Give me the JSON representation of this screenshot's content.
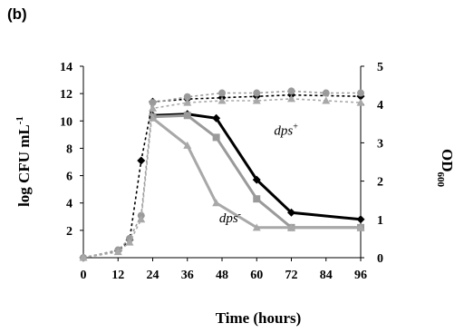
{
  "panel_label": "(b)",
  "chart_data": {
    "type": "line",
    "xlabel": "Time (hours)",
    "ylabel_left": "log CFU mL",
    "ylabel_left_sup": "-1",
    "ylabel_right": "OD",
    "ylabel_right_sub": "600",
    "xlim": [
      0,
      96
    ],
    "ylim_left": [
      0,
      14
    ],
    "ylim_right": [
      0,
      5
    ],
    "x_ticks": [
      "0",
      "12",
      "24",
      "36",
      "48",
      "60",
      "72",
      "84",
      "96"
    ],
    "y_left_ticks": [
      "2",
      "4",
      "6",
      "8",
      "10",
      "12",
      "14"
    ],
    "y_right_ticks": [
      "0",
      "1",
      "2",
      "3",
      "4",
      "5"
    ],
    "annotations": [
      {
        "text": "dps",
        "sup": "+",
        "x": 66,
        "y": 9.0,
        "axis": "left"
      },
      {
        "text": "dps",
        "sup": "-",
        "x": 47,
        "y": 2.6,
        "axis": "left"
      }
    ],
    "series": [
      {
        "axis": "left",
        "style": "solid",
        "color": "#000000",
        "marker": "diamond",
        "x": [
          24,
          36,
          46,
          60,
          72,
          96
        ],
        "y": [
          10.4,
          10.5,
          10.2,
          5.7,
          3.3,
          2.8
        ]
      },
      {
        "axis": "left",
        "style": "solid",
        "color": "#9a9a9a",
        "marker": "square",
        "x": [
          24,
          36,
          46,
          60,
          72,
          96
        ],
        "y": [
          10.3,
          10.4,
          8.8,
          4.3,
          2.2,
          2.2
        ]
      },
      {
        "axis": "left",
        "style": "solid",
        "color": "#a8a8a8",
        "marker": "triangle",
        "x": [
          24,
          36,
          46,
          60,
          72,
          96
        ],
        "y": [
          10.2,
          8.2,
          4.0,
          2.2,
          2.2,
          2.2
        ]
      },
      {
        "axis": "left",
        "style": "dotted",
        "color": "#000000",
        "marker": "diamond",
        "x": [
          0,
          12,
          16,
          20,
          24,
          36,
          48,
          60,
          72,
          96
        ],
        "y": [
          0,
          0.5,
          1.3,
          7.1,
          11.4,
          11.6,
          11.7,
          11.8,
          11.9,
          11.8
        ]
      },
      {
        "axis": "right",
        "style": "dotted",
        "color": "#9a9a9a",
        "marker": "circle",
        "x": [
          0,
          12,
          16,
          20,
          24,
          36,
          48,
          60,
          72,
          84,
          96
        ],
        "y": [
          0.0,
          0.2,
          0.5,
          1.1,
          4.05,
          4.2,
          4.3,
          4.3,
          4.35,
          4.3,
          4.3
        ]
      },
      {
        "axis": "right",
        "style": "dotted",
        "color": "#a8a8a8",
        "marker": "triangle",
        "x": [
          0,
          12,
          16,
          20,
          24,
          36,
          48,
          60,
          72,
          84,
          96
        ],
        "y": [
          0.0,
          0.15,
          0.4,
          1.0,
          3.9,
          4.05,
          4.1,
          4.1,
          4.15,
          4.1,
          4.05
        ]
      }
    ]
  }
}
